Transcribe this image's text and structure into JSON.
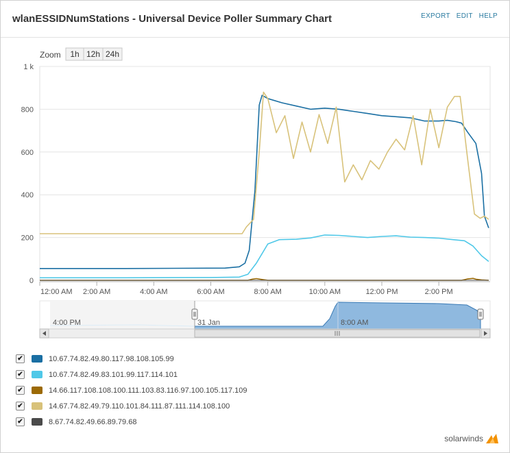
{
  "header": {
    "title": "wlanESSIDNumStations - Universal Device Poller Summary Chart",
    "actions": [
      "EXPORT",
      "EDIT",
      "HELP"
    ]
  },
  "zoom": {
    "label": "Zoom",
    "options": [
      "1h",
      "12h",
      "24h"
    ]
  },
  "navigator": {
    "labels": [
      "4:00 PM",
      "31 Jan",
      "8:00 AM"
    ]
  },
  "brand": {
    "name": "solarwinds"
  },
  "chart_data": {
    "type": "line",
    "ylim": [
      0,
      1000
    ],
    "y_ticks": [
      0,
      200,
      400,
      600,
      800,
      1000
    ],
    "y_tick_labels": [
      "0",
      "200",
      "400",
      "600",
      "800",
      "1 k"
    ],
    "x_range_hours": [
      0,
      15.8
    ],
    "x_ticks": [
      0,
      2,
      4,
      6,
      8,
      10,
      12,
      14
    ],
    "x_tick_labels": [
      "12:00 AM",
      "2:00 AM",
      "4:00 AM",
      "6:00 AM",
      "8:00 AM",
      "10:00 AM",
      "12:00 PM",
      "2:00 PM"
    ],
    "grid": true,
    "legend_position": "bottom",
    "series": [
      {
        "name": "10.67.74.82.49.80.117.98.108.105.99",
        "color": "#1a6fa3",
        "x": [
          0,
          3,
          6.5,
          7.0,
          7.2,
          7.35,
          7.55,
          7.7,
          7.8,
          8.0,
          8.5,
          9.0,
          9.5,
          10.0,
          10.5,
          11.0,
          11.5,
          12.0,
          12.5,
          13.0,
          13.5,
          14.0,
          14.3,
          14.6,
          14.8,
          15.0,
          15.3,
          15.5,
          15.6,
          15.75
        ],
        "y": [
          55,
          55,
          57,
          63,
          80,
          140,
          420,
          820,
          865,
          850,
          830,
          815,
          800,
          805,
          800,
          790,
          780,
          770,
          765,
          760,
          745,
          745,
          748,
          742,
          735,
          695,
          640,
          500,
          300,
          245
        ]
      },
      {
        "name": "10.67.74.82.49.83.101.99.117.114.101",
        "color": "#4fc8e8",
        "x": [
          0,
          3,
          6,
          7.0,
          7.3,
          7.6,
          8.0,
          8.4,
          9.0,
          9.5,
          10.0,
          10.5,
          11.0,
          11.5,
          12.0,
          12.5,
          13.0,
          13.5,
          14.0,
          14.5,
          14.9,
          15.2,
          15.5,
          15.75
        ],
        "y": [
          12,
          12,
          13,
          15,
          28,
          80,
          170,
          190,
          192,
          198,
          212,
          210,
          205,
          200,
          205,
          208,
          202,
          200,
          197,
          190,
          185,
          160,
          115,
          88
        ]
      },
      {
        "name": "14.66.117.108.108.100.111.103.83.116.97.100.105.117.109",
        "color": "#9c6a05",
        "x": [
          0,
          7.3,
          7.45,
          7.6,
          7.8,
          8.0,
          14.8,
          15.0,
          15.2,
          15.3,
          15.5,
          15.75
        ],
        "y": [
          0,
          0,
          5,
          8,
          4,
          0,
          0,
          6,
          9,
          5,
          2,
          0
        ]
      },
      {
        "name": "14.67.74.82.49.79.110.101.84.111.87.111.114.108.100",
        "color": "#d8c27a",
        "x": [
          0,
          3,
          6.5,
          7.1,
          7.25,
          7.5,
          7.7,
          7.85,
          8.0,
          8.3,
          8.6,
          8.9,
          9.2,
          9.5,
          9.8,
          10.1,
          10.4,
          10.7,
          11.0,
          11.3,
          11.6,
          11.9,
          12.2,
          12.5,
          12.8,
          13.1,
          13.4,
          13.7,
          14.0,
          14.3,
          14.55,
          14.75,
          15.0,
          15.25,
          15.45,
          15.6,
          15.75
        ],
        "y": [
          218,
          218,
          218,
          218,
          250,
          285,
          600,
          880,
          850,
          690,
          770,
          570,
          740,
          600,
          775,
          640,
          810,
          460,
          540,
          470,
          560,
          520,
          600,
          660,
          610,
          770,
          540,
          800,
          620,
          810,
          860,
          860,
          580,
          310,
          290,
          300,
          285
        ]
      },
      {
        "name": "8.67.74.82.49.66.89.79.68",
        "color": "#4a4a4a",
        "x": [
          0,
          15.75
        ],
        "y": [
          0,
          0
        ]
      }
    ]
  }
}
